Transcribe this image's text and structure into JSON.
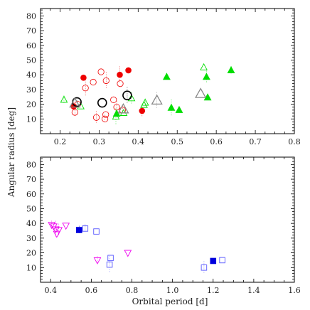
{
  "figure": {
    "ylabel": "Angular radius [deg]",
    "xlabel": "Orbital period [d]"
  },
  "chart_data": [
    {
      "type": "scatter",
      "panel": "top",
      "title": "",
      "xlabel": "",
      "ylabel": "Angular radius [deg]",
      "xlim": [
        0.15,
        0.8
      ],
      "ylim": [
        0,
        85
      ],
      "x_ticks": [
        "0.2",
        "0.3",
        "0.4",
        "0.5",
        "0.6",
        "0.7",
        "0.8"
      ],
      "y_ticks": [
        "10",
        "20",
        "30",
        "40",
        "50",
        "60",
        "70",
        "80"
      ],
      "series": [
        {
          "marker": "filled-circle",
          "color": "#ee0000",
          "points": [
            {
              "x": 0.235,
              "y": 18.5
            },
            {
              "x": 0.26,
              "y": 38
            },
            {
              "x": 0.353,
              "y": 40
            },
            {
              "x": 0.375,
              "y": 43
            },
            {
              "x": 0.41,
              "y": 15.5
            }
          ]
        },
        {
          "marker": "open-circle",
          "color": "#ee0000",
          "points": [
            {
              "x": 0.238,
              "y": 14.5
            },
            {
              "x": 0.245,
              "y": 20
            },
            {
              "x": 0.265,
              "y": 31
            },
            {
              "x": 0.285,
              "y": 35
            },
            {
              "x": 0.293,
              "y": 11
            },
            {
              "x": 0.305,
              "y": 42
            },
            {
              "x": 0.315,
              "y": 10
            },
            {
              "x": 0.317,
              "y": 13
            },
            {
              "x": 0.318,
              "y": 36
            },
            {
              "x": 0.337,
              "y": 23
            },
            {
              "x": 0.345,
              "y": 18
            },
            {
              "x": 0.354,
              "y": 34
            },
            {
              "x": 0.36,
              "y": 16
            }
          ]
        },
        {
          "marker": "filled-triangle",
          "color": "#00dd00",
          "points": [
            {
              "x": 0.345,
              "y": 13.5
            },
            {
              "x": 0.473,
              "y": 38.5
            },
            {
              "x": 0.485,
              "y": 17.5
            },
            {
              "x": 0.505,
              "y": 16
            },
            {
              "x": 0.575,
              "y": 38.5
            },
            {
              "x": 0.578,
              "y": 24.5
            },
            {
              "x": 0.638,
              "y": 43
            }
          ]
        },
        {
          "marker": "open-triangle",
          "color": "#00dd00",
          "points": [
            {
              "x": 0.21,
              "y": 23
            },
            {
              "x": 0.253,
              "y": 18.5
            },
            {
              "x": 0.343,
              "y": 11.5
            },
            {
              "x": 0.363,
              "y": 14
            },
            {
              "x": 0.383,
              "y": 24
            },
            {
              "x": 0.415,
              "y": 19.5
            },
            {
              "x": 0.418,
              "y": 21
            },
            {
              "x": 0.568,
              "y": 45
            }
          ]
        },
        {
          "marker": "open-circle-bold",
          "color": "#000000",
          "points": [
            {
              "x": 0.243,
              "y": 21.5
            },
            {
              "x": 0.308,
              "y": 21
            },
            {
              "x": 0.372,
              "y": 26
            }
          ]
        },
        {
          "marker": "open-triangle-large",
          "color": "#888888",
          "points": [
            {
              "x": 0.238,
              "y": 20.5
            },
            {
              "x": 0.362,
              "y": 16.5
            },
            {
              "x": 0.448,
              "y": 22.5
            },
            {
              "x": 0.56,
              "y": 27
            }
          ]
        }
      ]
    },
    {
      "type": "scatter",
      "panel": "bottom",
      "title": "",
      "xlabel": "Orbital period [d]",
      "ylabel": "Angular radius [deg]",
      "xlim": [
        0.35,
        1.6
      ],
      "ylim": [
        0,
        85
      ],
      "x_ticks": [
        "0.4",
        "0.6",
        "0.8",
        "1.0",
        "1.2",
        "1.4",
        "1.6"
      ],
      "y_ticks": [
        "10",
        "20",
        "30",
        "40",
        "50",
        "60",
        "70",
        "80"
      ],
      "series": [
        {
          "marker": "open-down-triangle",
          "color": "#ee00ee",
          "points": [
            {
              "x": 0.405,
              "y": 39
            },
            {
              "x": 0.415,
              "y": 38
            },
            {
              "x": 0.425,
              "y": 36
            },
            {
              "x": 0.43,
              "y": 33
            },
            {
              "x": 0.44,
              "y": 35.5
            },
            {
              "x": 0.475,
              "y": 38.5
            },
            {
              "x": 0.63,
              "y": 15
            },
            {
              "x": 0.78,
              "y": 20
            }
          ]
        },
        {
          "marker": "filled-square",
          "color": "#0000dd",
          "points": [
            {
              "x": 0.54,
              "y": 35.5
            },
            {
              "x": 1.2,
              "y": 14.5
            }
          ]
        },
        {
          "marker": "open-square",
          "color": "#5555ff",
          "points": [
            {
              "x": 0.57,
              "y": 36.5
            },
            {
              "x": 0.625,
              "y": 34.5
            },
            {
              "x": 0.69,
              "y": 12
            },
            {
              "x": 0.695,
              "y": 16.5
            },
            {
              "x": 1.155,
              "y": 10
            },
            {
              "x": 1.245,
              "y": 15
            }
          ]
        }
      ]
    }
  ]
}
